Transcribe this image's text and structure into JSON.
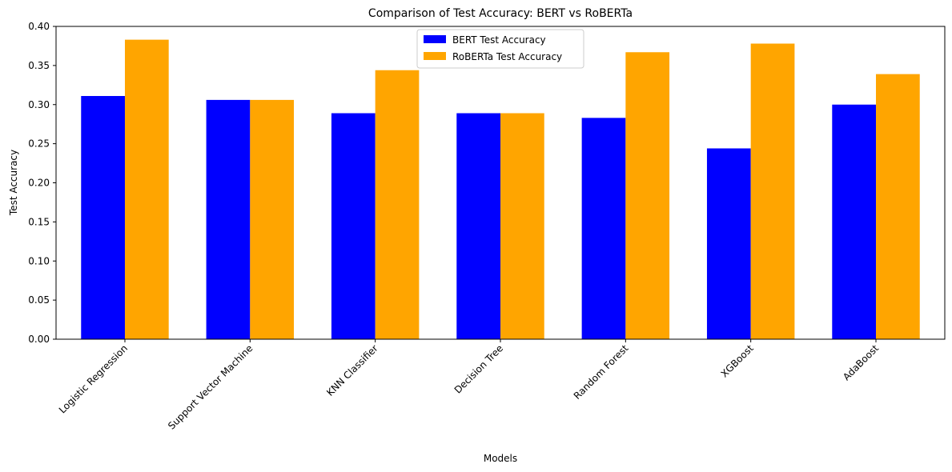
{
  "chart_data": {
    "type": "bar",
    "title": "Comparison of Test Accuracy: BERT vs RoBERTa",
    "xlabel": "Models",
    "ylabel": "Test Accuracy",
    "categories": [
      "Logistic Regression",
      "Support Vector Machine",
      "KNN Classifier",
      "Decision Tree",
      "Random Forest",
      "XGBoost",
      "AdaBoost"
    ],
    "series": [
      {
        "name": "BERT Test Accuracy",
        "color": "#0000ff",
        "values": [
          0.311,
          0.306,
          0.289,
          0.289,
          0.283,
          0.244,
          0.3
        ]
      },
      {
        "name": "RoBERTa Test Accuracy",
        "color": "#ffa500",
        "values": [
          0.383,
          0.306,
          0.344,
          0.289,
          0.367,
          0.378,
          0.339
        ]
      }
    ],
    "ylim": [
      0,
      0.4
    ],
    "yticks": [
      "0.00",
      "0.05",
      "0.10",
      "0.15",
      "0.20",
      "0.25",
      "0.30",
      "0.35",
      "0.40"
    ],
    "grid": false,
    "legend_position": "upper-center"
  }
}
